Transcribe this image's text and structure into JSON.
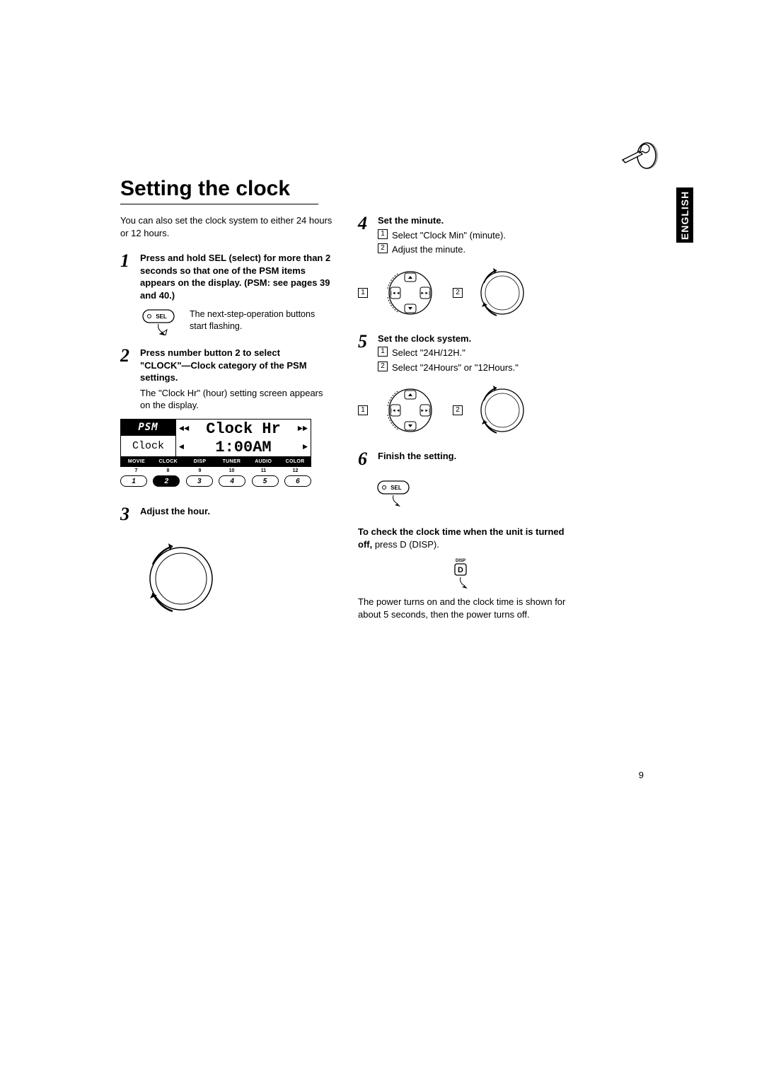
{
  "language_tab": "ENGLISH",
  "title": "Setting the clock",
  "intro": "You can also set the clock system to either 24 hours or 12 hours.",
  "page_number": "9",
  "left": {
    "step1": {
      "num": "1",
      "heading": "Press and hold SEL (select) for more than 2 seconds so that one of the PSM items appears on the display. (PSM: see pages 39 and 40.)",
      "caption": "The next-step-operation buttons start flashing.",
      "sel_label": "SEL"
    },
    "step2": {
      "num": "2",
      "heading": "Press number button 2 to select \"CLOCK\"—Clock category of the PSM settings.",
      "body": "The \"Clock Hr\" (hour) setting screen appears on the display."
    },
    "lcd": {
      "psm": "PSM",
      "clock": "Clock",
      "line1_left_icon": "◄◄",
      "line1_text": "Clock Hr",
      "line1_right_icon": "►►",
      "line2_left_icon": "◄",
      "line2_text": "1:00AM",
      "line2_right_icon": "►",
      "tabs": [
        "MOVIE",
        "CLOCK",
        "DISP",
        "TUNER",
        "AUDIO",
        "COLOR"
      ],
      "active_tab_index": 1,
      "small_nums": [
        "7",
        "8",
        "9",
        "10",
        "11",
        "12"
      ],
      "buttons": [
        "1",
        "2",
        "3",
        "4",
        "5",
        "6"
      ],
      "active_button_index": 1
    },
    "step3": {
      "num": "3",
      "heading": "Adjust the hour."
    }
  },
  "right": {
    "step4": {
      "num": "4",
      "heading": "Set the minute.",
      "sub1": "Select \"Clock Min\" (minute).",
      "sub2": "Adjust the minute.",
      "box1": "1",
      "box2": "2"
    },
    "step5": {
      "num": "5",
      "heading": "Set the clock system.",
      "sub1": "Select \"24H/12H.\"",
      "sub2": "Select \"24Hours\" or \"12Hours.\"",
      "box1": "1",
      "box2": "2"
    },
    "step6": {
      "num": "6",
      "heading": "Finish the setting.",
      "sel_label": "SEL"
    },
    "check_heading": "To check the clock time when the unit is turned off, ",
    "check_action": "press D (DISP).",
    "disp_label": "DISP",
    "disp_btn": "D",
    "check_body": "The power turns on and the clock time is shown for about 5 seconds, then the power turns off."
  },
  "colors": {
    "text": "#000000",
    "bg": "#ffffff"
  }
}
